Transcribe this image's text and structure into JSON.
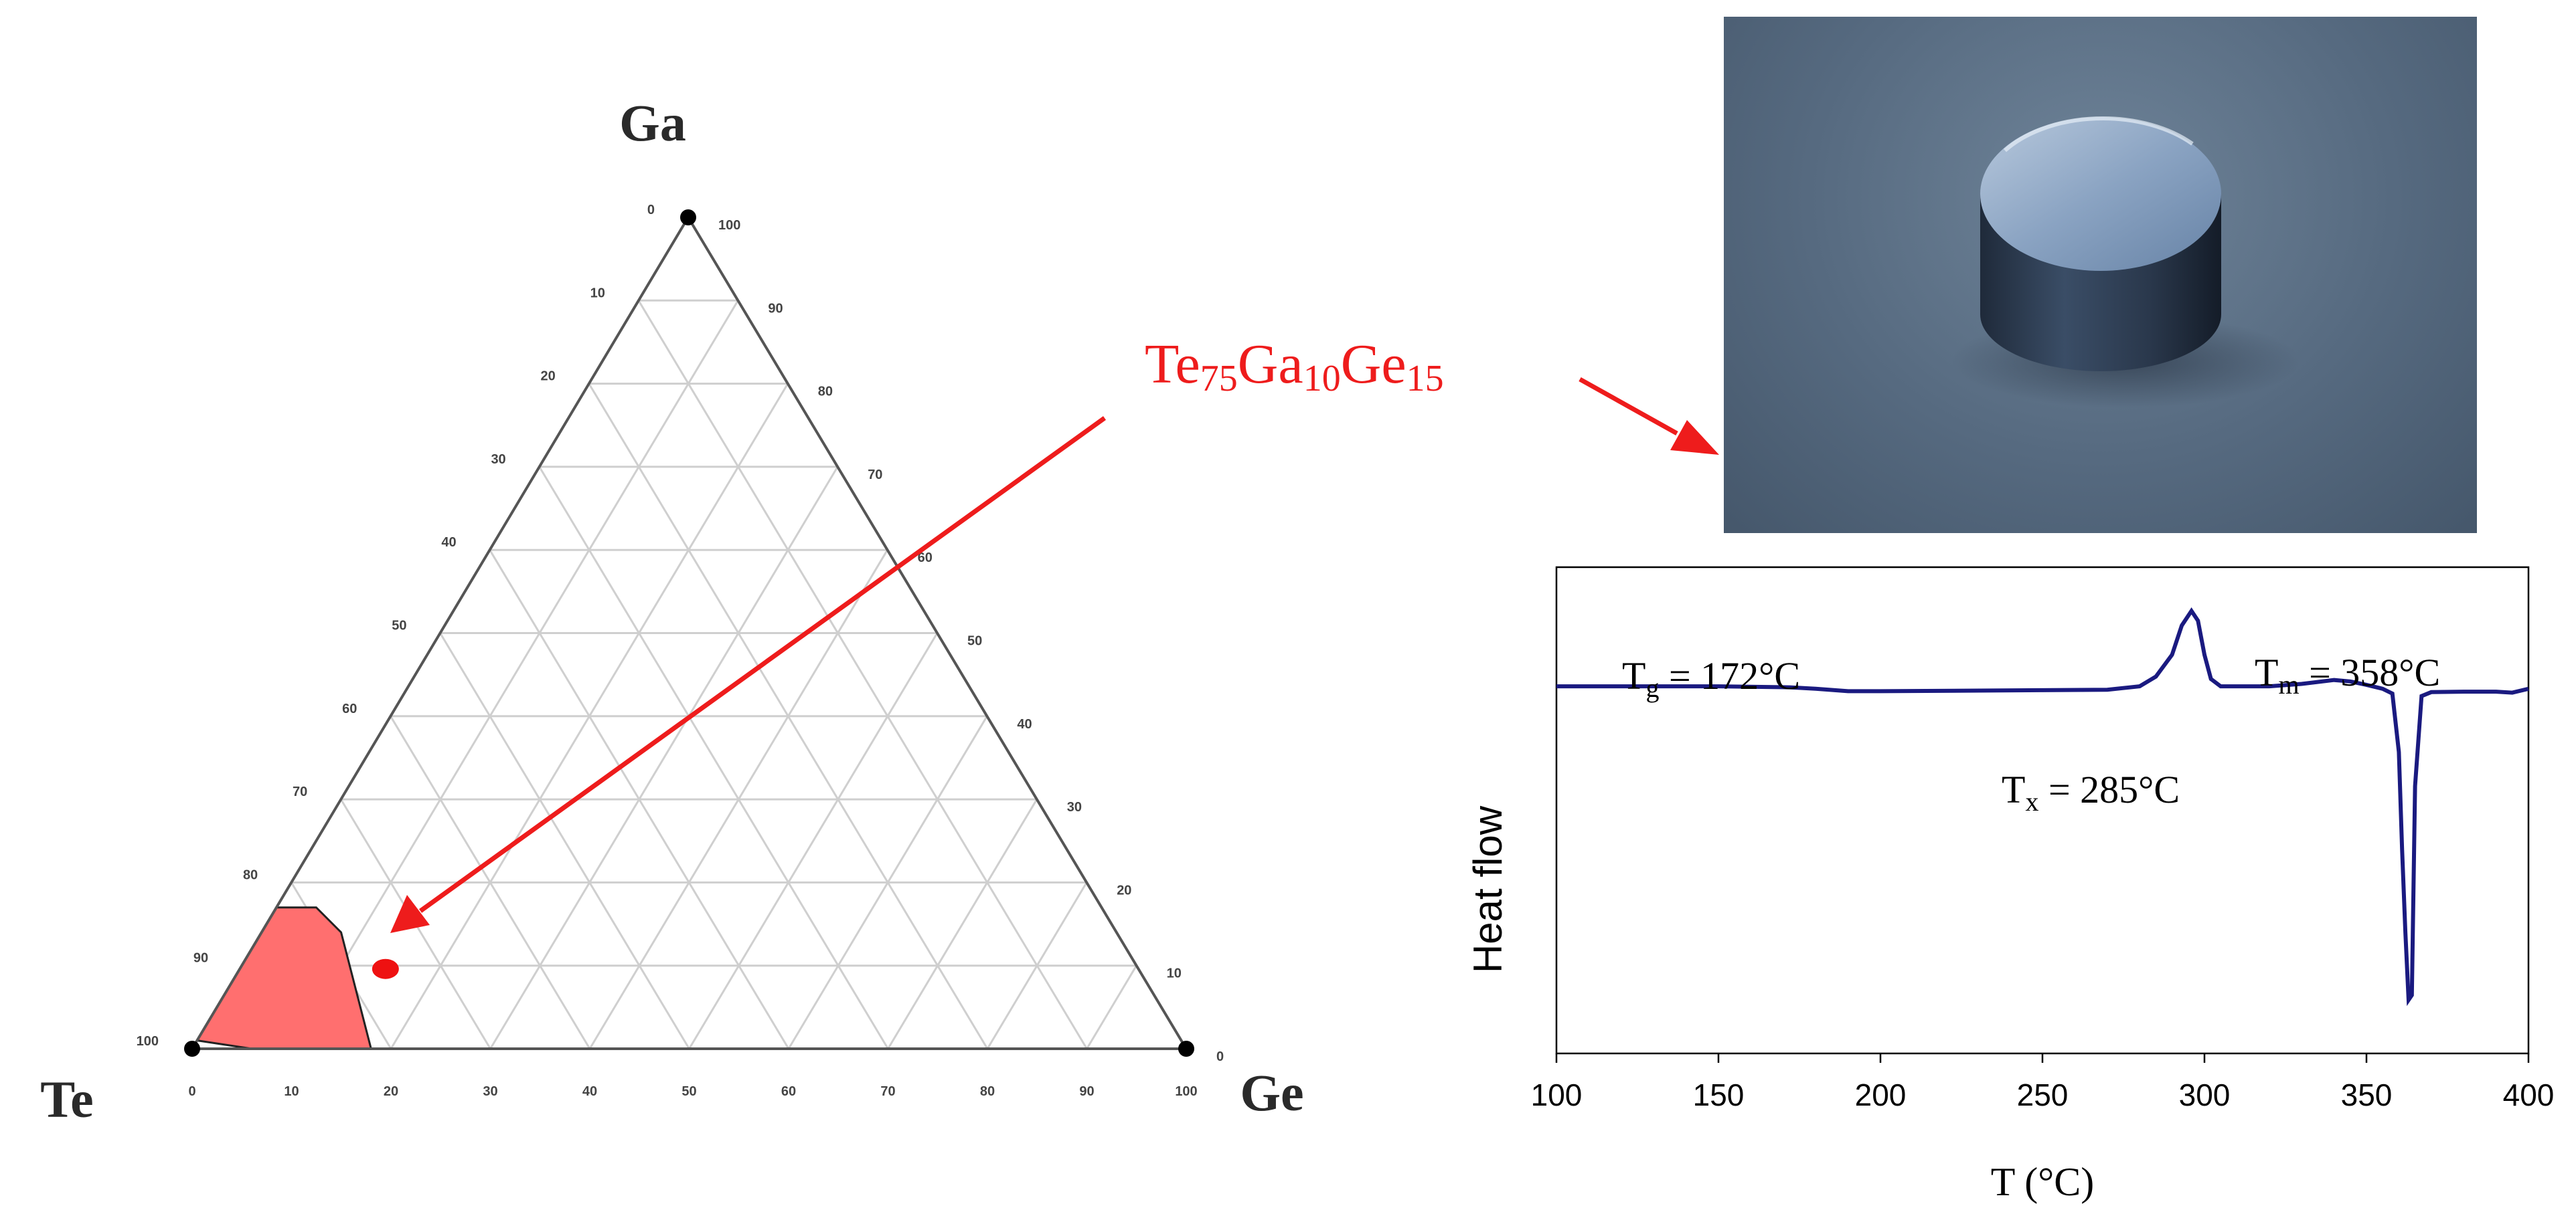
{
  "ternary": {
    "vertices": {
      "top": "Ga",
      "left": "Te",
      "right": "Ge"
    },
    "bottom_ticks": [
      "0",
      "10",
      "20",
      "30",
      "40",
      "50",
      "60",
      "70",
      "80",
      "90",
      "100"
    ],
    "left_ticks": [
      "0",
      "10",
      "20",
      "30",
      "40",
      "50",
      "60",
      "70",
      "80",
      "90",
      "100"
    ],
    "right_ticks": [
      "100",
      "90",
      "80",
      "70",
      "60",
      "50",
      "40",
      "30",
      "20",
      "10",
      "0"
    ],
    "composition_label": {
      "base1": "Te",
      "sub1": "75",
      "base2": "Ga",
      "sub2": "10",
      "base3": "Ge",
      "sub3": "15"
    },
    "highlight_color": "#ff6f6f",
    "arrow_color": "#ee1c1c"
  },
  "photo": {
    "description_icon": "glass-puck-photo"
  },
  "chart_data": {
    "type": "line",
    "title": "",
    "xlabel": "T (°C)",
    "ylabel": "Heat flow",
    "xlim": [
      100,
      400
    ],
    "xticks": [
      100,
      150,
      200,
      250,
      300,
      350,
      400
    ],
    "ylim": [
      0,
      100
    ],
    "series": [
      {
        "color": "#1a1a80",
        "x": [
          100,
          150,
          172,
          180,
          190,
          200,
          250,
          270,
          280,
          285,
          290,
          293,
          296,
          298,
          300,
          302,
          305,
          310,
          320,
          330,
          340,
          345,
          350,
          355,
          358,
          360,
          361,
          362,
          363,
          364,
          365,
          367,
          370,
          380,
          390,
          395,
          400
        ],
        "y": [
          75.5,
          75.5,
          75.3,
          75,
          74.5,
          74.5,
          74.7,
          74.8,
          75.5,
          77.5,
          82,
          88,
          91,
          89,
          82,
          77,
          75.5,
          75.5,
          75.5,
          76,
          76.8,
          76.5,
          75.8,
          75,
          74,
          62,
          42,
          25,
          11,
          12,
          55,
          73.5,
          74.3,
          74.4,
          74.4,
          74.2,
          75
        ]
      }
    ],
    "annotations": [
      {
        "label": "T",
        "sub": "g",
        "text": " = 172°C"
      },
      {
        "label": "T",
        "sub": "x",
        "text": " = 285°C"
      },
      {
        "label": "T",
        "sub": "m",
        "text": " = 358°C"
      }
    ]
  }
}
